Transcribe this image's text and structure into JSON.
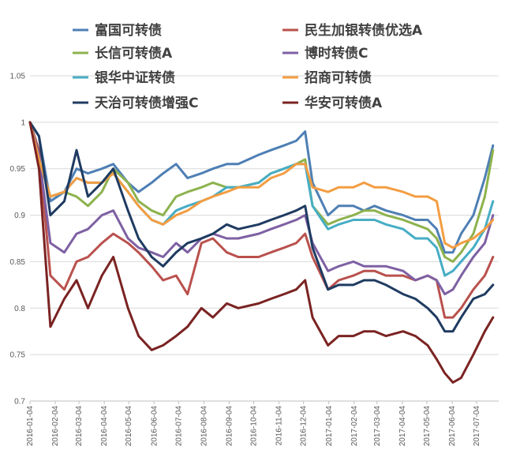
{
  "chart_data": {
    "type": "line",
    "title": "",
    "xlabel": "",
    "ylabel": "",
    "ylim": [
      0.7,
      1.05
    ],
    "y_ticks": [
      "0.7",
      "0.75",
      "0.8",
      "0.85",
      "0.9",
      "0.95",
      "1",
      "1.05"
    ],
    "x_ticks": [
      "2016-01-04",
      "2016-02-04",
      "2016-03-04",
      "2016-04-04",
      "2016-05-04",
      "2016-06-04",
      "2016-07-04",
      "2016-08-04",
      "2016-09-04",
      "2016-10-04",
      "2016-11-04",
      "2016-12-04",
      "2017-01-04",
      "2017-02-04",
      "2017-03-04",
      "2017-04-04",
      "2017-05-04",
      "2017-06-04",
      "2017-07-04"
    ],
    "grid": true,
    "legend_position": "top",
    "x_dates": [
      "2016-01-04",
      "2016-01-15",
      "2016-01-29",
      "2016-02-15",
      "2016-03-01",
      "2016-03-15",
      "2016-04-01",
      "2016-04-15",
      "2016-05-03",
      "2016-05-16",
      "2016-06-01",
      "2016-06-15",
      "2016-07-01",
      "2016-07-15",
      "2016-08-01",
      "2016-08-15",
      "2016-09-01",
      "2016-09-15",
      "2016-10-10",
      "2016-10-25",
      "2016-11-10",
      "2016-11-25",
      "2016-12-06",
      "2016-12-15",
      "2017-01-03",
      "2017-01-16",
      "2017-02-03",
      "2017-02-16",
      "2017-03-01",
      "2017-03-15",
      "2017-04-05",
      "2017-04-20",
      "2017-05-05",
      "2017-05-16",
      "2017-05-26",
      "2017-06-05",
      "2017-06-15",
      "2017-06-30",
      "2017-07-14",
      "2017-07-24"
    ],
    "series": [
      {
        "name": "富国可转债",
        "color": "#4E7FB4",
        "values": [
          1.0,
          0.985,
          0.915,
          0.925,
          0.95,
          0.945,
          0.95,
          0.955,
          0.935,
          0.925,
          0.935,
          0.945,
          0.955,
          0.94,
          0.945,
          0.95,
          0.955,
          0.955,
          0.965,
          0.97,
          0.975,
          0.98,
          0.99,
          0.935,
          0.9,
          0.91,
          0.91,
          0.905,
          0.91,
          0.905,
          0.9,
          0.895,
          0.895,
          0.885,
          0.86,
          0.86,
          0.88,
          0.9,
          0.94,
          0.975
        ]
      },
      {
        "name": "民生加银转债优选A",
        "color": "#B9514D",
        "values": [
          1.0,
          0.97,
          0.835,
          0.82,
          0.85,
          0.855,
          0.87,
          0.88,
          0.87,
          0.86,
          0.845,
          0.83,
          0.835,
          0.815,
          0.87,
          0.875,
          0.86,
          0.855,
          0.855,
          0.86,
          0.865,
          0.87,
          0.88,
          0.855,
          0.82,
          0.83,
          0.835,
          0.84,
          0.84,
          0.835,
          0.835,
          0.83,
          0.835,
          0.83,
          0.79,
          0.79,
          0.8,
          0.82,
          0.835,
          0.855
        ]
      },
      {
        "name": "长信可转债A",
        "color": "#8DB24D",
        "values": [
          1.0,
          0.96,
          0.92,
          0.925,
          0.92,
          0.91,
          0.925,
          0.95,
          0.935,
          0.915,
          0.905,
          0.9,
          0.92,
          0.925,
          0.93,
          0.935,
          0.93,
          0.93,
          0.935,
          0.945,
          0.95,
          0.955,
          0.96,
          0.91,
          0.89,
          0.895,
          0.9,
          0.905,
          0.905,
          0.9,
          0.895,
          0.89,
          0.885,
          0.875,
          0.855,
          0.85,
          0.86,
          0.88,
          0.92,
          0.97
        ]
      },
      {
        "name": "博时转债C",
        "color": "#7E60A3",
        "values": [
          1.0,
          0.965,
          0.87,
          0.86,
          0.88,
          0.885,
          0.9,
          0.905,
          0.875,
          0.865,
          0.86,
          0.855,
          0.87,
          0.86,
          0.875,
          0.88,
          0.875,
          0.875,
          0.88,
          0.885,
          0.89,
          0.895,
          0.9,
          0.87,
          0.84,
          0.845,
          0.85,
          0.845,
          0.845,
          0.845,
          0.84,
          0.83,
          0.835,
          0.83,
          0.815,
          0.82,
          0.835,
          0.855,
          0.87,
          0.9
        ]
      },
      {
        "name": "银华中证转债",
        "color": "#47ADC5",
        "values": [
          1.0,
          0.96,
          0.92,
          0.925,
          0.94,
          0.935,
          0.935,
          0.945,
          0.925,
          0.91,
          0.895,
          0.89,
          0.905,
          0.91,
          0.915,
          0.92,
          0.93,
          0.93,
          0.935,
          0.945,
          0.95,
          0.955,
          0.955,
          0.91,
          0.885,
          0.89,
          0.895,
          0.895,
          0.895,
          0.89,
          0.885,
          0.875,
          0.875,
          0.865,
          0.835,
          0.84,
          0.85,
          0.865,
          0.885,
          0.915
        ]
      },
      {
        "name": "招商可转债",
        "color": "#F39D42",
        "values": [
          1.0,
          0.96,
          0.92,
          0.925,
          0.94,
          0.935,
          0.935,
          0.945,
          0.925,
          0.91,
          0.895,
          0.89,
          0.9,
          0.905,
          0.915,
          0.92,
          0.925,
          0.93,
          0.93,
          0.94,
          0.945,
          0.955,
          0.955,
          0.93,
          0.925,
          0.93,
          0.93,
          0.935,
          0.93,
          0.93,
          0.925,
          0.92,
          0.92,
          0.915,
          0.87,
          0.865,
          0.87,
          0.875,
          0.885,
          0.895
        ]
      },
      {
        "name": "天治可转债增强C",
        "color": "#1F3B61",
        "values": [
          1.0,
          0.985,
          0.9,
          0.915,
          0.97,
          0.92,
          0.935,
          0.95,
          0.905,
          0.875,
          0.855,
          0.845,
          0.86,
          0.87,
          0.875,
          0.88,
          0.89,
          0.885,
          0.89,
          0.895,
          0.9,
          0.905,
          0.91,
          0.865,
          0.82,
          0.825,
          0.825,
          0.83,
          0.83,
          0.825,
          0.815,
          0.81,
          0.8,
          0.79,
          0.775,
          0.775,
          0.79,
          0.81,
          0.815,
          0.825
        ]
      },
      {
        "name": "华安可转债A",
        "color": "#7A2322",
        "values": [
          1.0,
          0.95,
          0.78,
          0.81,
          0.83,
          0.8,
          0.835,
          0.855,
          0.8,
          0.77,
          0.755,
          0.76,
          0.77,
          0.78,
          0.8,
          0.79,
          0.805,
          0.8,
          0.805,
          0.81,
          0.815,
          0.82,
          0.83,
          0.79,
          0.76,
          0.77,
          0.77,
          0.775,
          0.775,
          0.77,
          0.775,
          0.77,
          0.76,
          0.745,
          0.73,
          0.72,
          0.725,
          0.75,
          0.775,
          0.79
        ]
      }
    ]
  }
}
